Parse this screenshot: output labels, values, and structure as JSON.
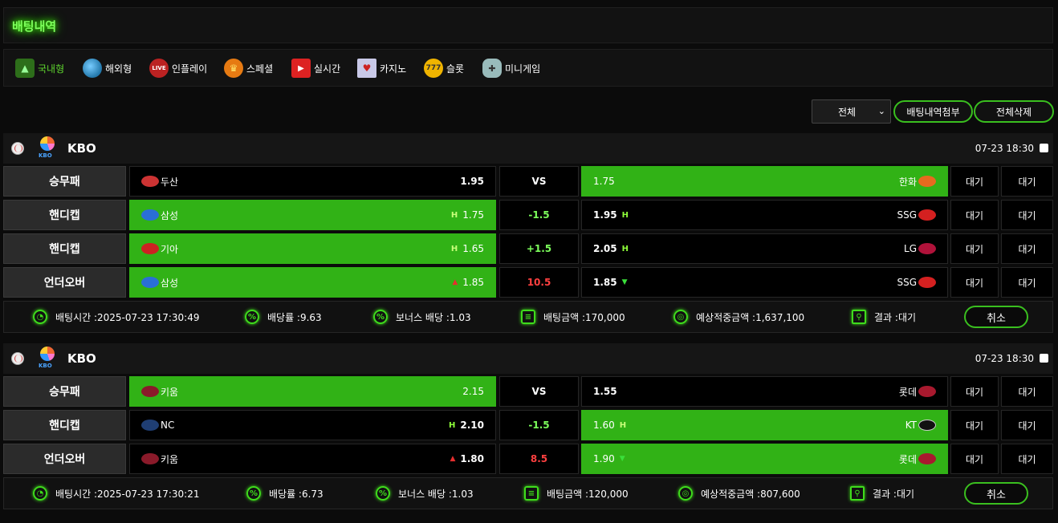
{
  "page_title": "배팅내역",
  "categories": [
    {
      "label": "국내형",
      "icon": "domestic-icon",
      "active": true
    },
    {
      "label": "해외형",
      "icon": "globe-icon"
    },
    {
      "label": "인플레이",
      "icon": "live-basketball-icon"
    },
    {
      "label": "스페셜",
      "icon": "trophy-icon"
    },
    {
      "label": "실시간",
      "icon": "live-video-icon"
    },
    {
      "label": "카지노",
      "icon": "cards-icon"
    },
    {
      "label": "슬롯",
      "icon": "slot-machine-icon"
    },
    {
      "label": "미니게임",
      "icon": "gamepad-icon"
    }
  ],
  "filter": {
    "select_value": "전체",
    "attach_label": "배팅내역첨부",
    "delete_all_label": "전체삭제"
  },
  "colors": {
    "accent": "#31b216",
    "neon": "#3fdc1c",
    "label_bg": "#2b2b2b"
  },
  "bets": [
    {
      "league": "KBO",
      "datetime": "07-23 18:30",
      "rows": [
        {
          "type": "승무패",
          "home": "두산",
          "home_odd": "1.95",
          "mid": "VS",
          "away_odd": "1.75",
          "away": "한화",
          "status1": "대기",
          "status2": "대기"
        },
        {
          "type": "핸디캡",
          "home": "삼성",
          "home_ind": "H",
          "home_odd": "1.75",
          "mid": "-1.5",
          "away_odd": "1.95",
          "away_ind": "H",
          "away": "SSG",
          "status1": "대기",
          "status2": "대기"
        },
        {
          "type": "핸디캡",
          "home": "기아",
          "home_ind": "H",
          "home_odd": "1.65",
          "mid": "+1.5",
          "away_odd": "2.05",
          "away_ind": "H",
          "away": "LG",
          "status1": "대기",
          "status2": "대기"
        },
        {
          "type": "언더오버",
          "home": "삼성",
          "home_ind": "▲",
          "home_odd": "1.85",
          "mid": "10.5",
          "away_odd": "1.85",
          "away_ind": "▼",
          "away": "SSG",
          "status1": "대기",
          "status2": "대기"
        }
      ],
      "footer": {
        "time_label": "배팅시간 :2025-07-23 17:30:49",
        "rate_label": "배당률 :9.63",
        "bonus_label": "보너스 배당 :1.03",
        "amount_label": "배팅금액 :170,000",
        "expected_label": "예상적중금액 :1,637,100",
        "result_label": "결과 :대기",
        "cancel_label": "취소"
      }
    },
    {
      "league": "KBO",
      "datetime": "07-23 18:30",
      "rows": [
        {
          "type": "승무패",
          "home": "키움",
          "home_odd": "2.15",
          "mid": "VS",
          "away_odd": "1.55",
          "away": "롯데",
          "status1": "대기",
          "status2": "대기"
        },
        {
          "type": "핸디캡",
          "home": "NC",
          "home_ind": "H",
          "home_odd": "2.10",
          "mid": "-1.5",
          "away_odd": "1.60",
          "away_ind": "H",
          "away": "KT",
          "status1": "대기",
          "status2": "대기"
        },
        {
          "type": "언더오버",
          "home": "키움",
          "home_ind": "▲",
          "home_odd": "1.80",
          "mid": "8.5",
          "away_odd": "1.90",
          "away_ind": "▼",
          "away": "롯데",
          "status1": "대기",
          "status2": "대기"
        }
      ],
      "footer": {
        "time_label": "배팅시간 :2025-07-23 17:30:21",
        "rate_label": "배당률 :6.73",
        "bonus_label": "보너스 배당 :1.03",
        "amount_label": "배팅금액 :120,000",
        "expected_label": "예상적중금액 :807,600",
        "result_label": "결과 :대기",
        "cancel_label": "취소"
      }
    }
  ]
}
